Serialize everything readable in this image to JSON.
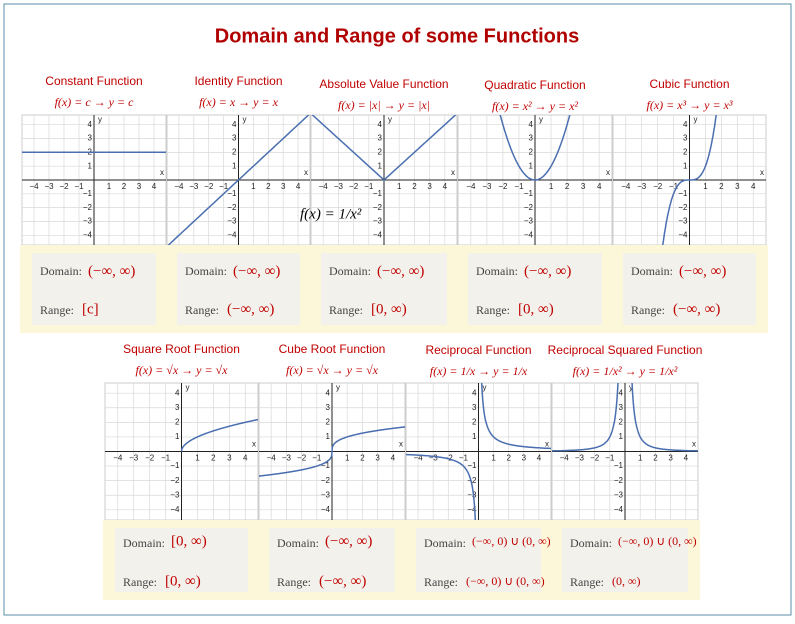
{
  "title": "Domain and Range of some Functions",
  "x_tick_labels": [
    "−4",
    "−3",
    "−2",
    "−1",
    "1",
    "2",
    "3",
    "4"
  ],
  "y_tick_labels": [
    "4",
    "3",
    "2",
    "1",
    "−1",
    "−2",
    "−3",
    "−4"
  ],
  "axis_x": "x",
  "axis_y": "y",
  "domain_label": "Domain:",
  "range_label": "Range:",
  "overlay_formula": "f(x) = 1/x²",
  "functions": [
    {
      "name": "Constant Function",
      "formula": "f(x) = c → y = c",
      "domain": "(−∞, ∞)",
      "range": "[c]"
    },
    {
      "name": "Identity Function",
      "formula": "f(x) = x → y = x",
      "domain": "(−∞, ∞)",
      "range": "(−∞, ∞)"
    },
    {
      "name": "Absolute Value Function",
      "formula": "f(x) = |x| → y = |x|",
      "domain": "(−∞, ∞)",
      "range": "[0, ∞)"
    },
    {
      "name": "Quadratic Function",
      "formula": "f(x) = x² → y = x²",
      "domain": "(−∞, ∞)",
      "range": "[0, ∞)"
    },
    {
      "name": "Cubic Function",
      "formula": "f(x) = x³ → y = x³",
      "domain": "(−∞, ∞)",
      "range": "(−∞, ∞)"
    },
    {
      "name": "Square Root Function",
      "formula": "f(x) = √x → y = √x",
      "domain": "[0, ∞)",
      "range": "[0, ∞)"
    },
    {
      "name": "Cube Root Function",
      "formula": "f(x) = √x → y = √x",
      "domain": "(−∞, ∞)",
      "range": "(−∞, ∞)"
    },
    {
      "name": "Reciprocal Function",
      "formula": "f(x) = 1/x → y = 1/x",
      "domain": "(−∞, 0) ∪ (0, ∞)",
      "range": "(−∞, 0) ∪ (0, ∞)"
    },
    {
      "name": "Reciprocal Squared Function",
      "formula": "f(x) = 1/x² → y = 1/x²",
      "domain": "(−∞, 0) ∪ (0, ∞)",
      "range": "(0, ∞)"
    }
  ]
}
